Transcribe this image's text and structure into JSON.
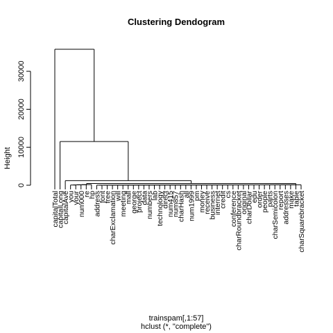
{
  "chart_data": {
    "type": "dendrogram",
    "title": "Clustering Dendogram",
    "ylabel": "Height",
    "xlabel": "trainspam[,1:57]",
    "sublabel": "hclust (*, \"complete\")",
    "ylim": [
      0,
      37000
    ],
    "yticks": [
      0,
      10000,
      20000,
      30000
    ],
    "leaves": [
      "capitalTotal",
      "capitalLong",
      "capitalAve",
      "you",
      "your",
      "num000",
      "re",
      "hp",
      "address",
      "font",
      "free",
      "charExclamation",
      "will",
      "meeting",
      "mail",
      "george",
      "project",
      "data",
      "numbers",
      "lab",
      "technology",
      "direct",
      "num415",
      "num857",
      "charHash",
      "all",
      "num1999",
      "pm",
      "money",
      "receive",
      "business",
      "internet",
      "credit",
      "cs",
      "conference",
      "charRoundbracket",
      "original",
      "charDollar",
      "edu",
      "order",
      "people",
      "parts",
      "charSemicolon",
      "report",
      "addresses",
      "make",
      "table",
      "charSquarebracket"
    ],
    "merges": [
      {
        "height": 35800,
        "leaf_a": "capitalTotal",
        "group_b": "rest"
      },
      {
        "height": 11500,
        "leaf_a": "capitalLong",
        "group_b": "rest"
      },
      {
        "height": 1200,
        "leaf_a": "capitalAve",
        "group_b": "rest"
      },
      {
        "height": 450,
        "group_a": "you..hp",
        "group_b": "address..charSquarebracket"
      }
    ]
  }
}
